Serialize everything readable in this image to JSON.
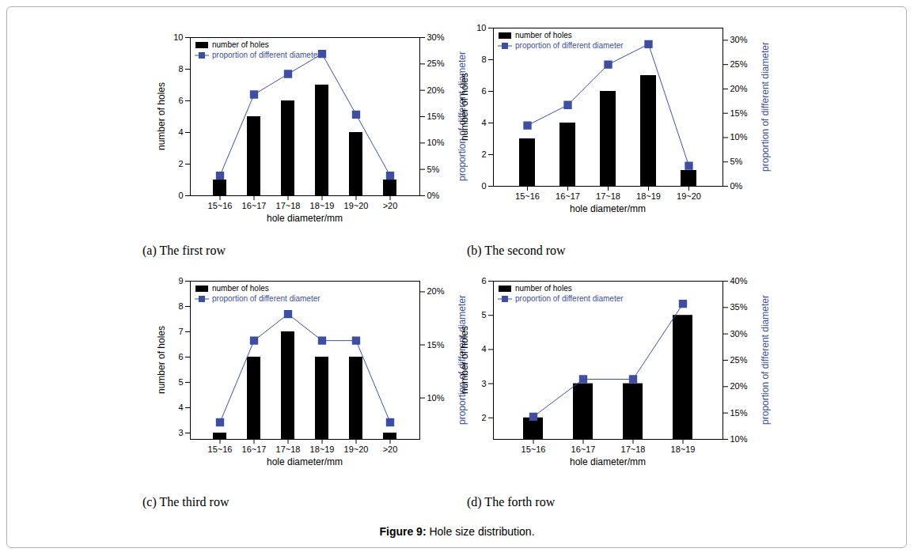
{
  "chart_data": [
    {
      "type": "bar",
      "title": "(a) The first row",
      "categories": [
        "15~16",
        "16~17",
        "17~18",
        "18~19",
        "19~20",
        ">20"
      ],
      "xlabel": "hole diameter/mm",
      "ylabel": "number of holes",
      "y2label": "proportion of different diameter",
      "series": [
        {
          "name": "number of holes",
          "type": "bar",
          "color": "#000000",
          "values": [
            1,
            5,
            6,
            7,
            4,
            1
          ]
        },
        {
          "name": "proportion of different diameter",
          "type": "line",
          "axis": "y2",
          "marker": "square",
          "color": "#3d4fa3",
          "values": [
            3.8,
            19.2,
            23.1,
            26.9,
            15.4,
            3.8
          ]
        }
      ],
      "ylim": [
        0,
        10
      ],
      "yticks": [
        0,
        2,
        4,
        6,
        8,
        10
      ],
      "y2lim": [
        0,
        30
      ],
      "y2ticks": [
        {
          "value": 0,
          "label": "0%"
        },
        {
          "value": 5,
          "label": "5%"
        },
        {
          "value": 10,
          "label": "10%"
        },
        {
          "value": 15,
          "label": "15%"
        },
        {
          "value": 20,
          "label": "20%"
        },
        {
          "value": 25,
          "label": "25%"
        },
        {
          "value": 30,
          "label": "30%"
        }
      ],
      "legend": "top-left",
      "grid": false
    },
    {
      "type": "bar",
      "title": "(b) The second row",
      "categories": [
        "15~16",
        "16~17",
        "17~18",
        "18~19",
        "19~20"
      ],
      "xlabel": "hole diameter/mm",
      "ylabel": "number of holes",
      "y2label": "proportion of different diameter",
      "series": [
        {
          "name": "number of holes",
          "type": "bar",
          "color": "#000000",
          "values": [
            3,
            4,
            6,
            7,
            1
          ]
        },
        {
          "name": "proportion of different diameter",
          "type": "line",
          "axis": "y2",
          "marker": "square",
          "color": "#3d4fa3",
          "values": [
            12.5,
            16.7,
            25.0,
            29.2,
            4.2
          ]
        }
      ],
      "ylim": [
        0,
        10
      ],
      "yticks": [
        0,
        2,
        4,
        6,
        8,
        10
      ],
      "y2lim": [
        0,
        32.5
      ],
      "y2ticks": [
        {
          "value": 0,
          "label": "0%"
        },
        {
          "value": 5,
          "label": "5%"
        },
        {
          "value": 10,
          "label": "10%"
        },
        {
          "value": 15,
          "label": "15%"
        },
        {
          "value": 20,
          "label": "20%"
        },
        {
          "value": 25,
          "label": "25%"
        },
        {
          "value": 30,
          "label": "30%"
        }
      ],
      "legend": "top-left",
      "grid": false
    },
    {
      "type": "bar",
      "title": "(c) The third row",
      "categories": [
        "15~16",
        "16~17",
        "17~18",
        "18~19",
        "19~20",
        ">20"
      ],
      "xlabel": "hole diameter/mm",
      "ylabel": "number of holes",
      "y2label": "proportion of different diameter",
      "series": [
        {
          "name": "number of holes",
          "type": "bar",
          "color": "#000000",
          "values": [
            3,
            6,
            7,
            6,
            6,
            3
          ]
        },
        {
          "name": "proportion of different diameter",
          "type": "line",
          "axis": "y2",
          "marker": "square",
          "color": "#3d4fa3",
          "values": [
            7.7,
            15.4,
            17.9,
            15.4,
            15.4,
            7.7
          ]
        }
      ],
      "ylim": [
        2.75,
        9
      ],
      "yticks": [
        3,
        4,
        5,
        6,
        7,
        8,
        9
      ],
      "y2lim": [
        6.1,
        21
      ],
      "y2ticks": [
        {
          "value": 10,
          "label": "10%"
        },
        {
          "value": 15,
          "label": "15%"
        },
        {
          "value": 20,
          "label": "20%"
        }
      ],
      "legend": "top-left",
      "grid": false
    },
    {
      "type": "bar",
      "title": "(d) The forth row",
      "categories": [
        "15~16",
        "16~17",
        "17~18",
        "18~19"
      ],
      "xlabel": "hole diameter/mm",
      "ylabel": "number of holes",
      "y2label": "proportion of different diameter",
      "series": [
        {
          "name": "number of holes",
          "type": "bar",
          "color": "#000000",
          "values": [
            2,
            3,
            3,
            5
          ]
        },
        {
          "name": "proportion of different diameter",
          "type": "line",
          "axis": "y2",
          "marker": "square",
          "color": "#3d4fa3",
          "values": [
            14.3,
            21.4,
            21.4,
            35.7
          ]
        }
      ],
      "ylim": [
        1.37,
        6
      ],
      "yticks": [
        2,
        3,
        4,
        5,
        6
      ],
      "y2lim": [
        10,
        40
      ],
      "y2ticks": [
        {
          "value": 10,
          "label": "10%"
        },
        {
          "value": 15,
          "label": "15%"
        },
        {
          "value": 20,
          "label": "20%"
        },
        {
          "value": 25,
          "label": "25%"
        },
        {
          "value": 30,
          "label": "30%"
        },
        {
          "value": 35,
          "label": "35%"
        },
        {
          "value": 40,
          "label": "40%"
        }
      ],
      "legend": "top-left",
      "grid": false
    }
  ],
  "figure_caption": {
    "label": "Figure 9:",
    "text": "Hole size distribution."
  }
}
